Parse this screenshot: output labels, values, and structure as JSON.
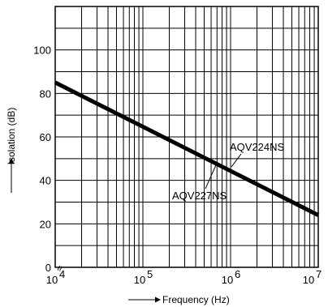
{
  "chart_data": {
    "type": "line",
    "title": "",
    "xlabel": "Frequency (Hz)",
    "ylabel": "Isolation (dB)",
    "x_scale": "log",
    "xlim": [
      10000,
      10000000
    ],
    "ylim": [
      0,
      120
    ],
    "grid": true,
    "y_ticks": [
      {
        "value": 0,
        "label": "0"
      },
      {
        "value": 20,
        "label": "20"
      },
      {
        "value": 40,
        "label": "40"
      },
      {
        "value": 60,
        "label": "60"
      },
      {
        "value": 80,
        "label": "80"
      },
      {
        "value": 100,
        "label": "100"
      }
    ],
    "x_ticks": [
      {
        "value": 10000,
        "base": "10",
        "exp": "4"
      },
      {
        "value": 100000,
        "base": "10",
        "exp": "5"
      },
      {
        "value": 1000000,
        "base": "10",
        "exp": "6"
      },
      {
        "value": 10000000,
        "base": "10",
        "exp": "7"
      }
    ],
    "axis_break_symbol": "≈",
    "series": [
      {
        "labels": [
          "AQV224NS",
          "AQV227NS"
        ],
        "x": [
          10000,
          10000000
        ],
        "values": [
          85,
          24
        ],
        "label_targets": [
          {
            "x": 1000000,
            "y": 44.7
          },
          {
            "x": 640000,
            "y": 48.6
          }
        ]
      }
    ],
    "colors": {
      "line": "#000000",
      "grid": "#000000",
      "background": "#ffffff"
    }
  }
}
